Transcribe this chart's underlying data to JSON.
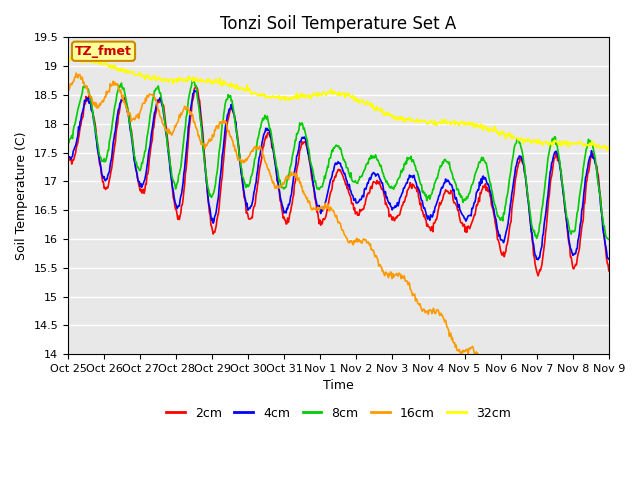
{
  "title": "Tonzi Soil Temperature Set A",
  "xlabel": "Time",
  "ylabel": "Soil Temperature (C)",
  "ylim": [
    14.0,
    19.5
  ],
  "yticks": [
    14.0,
    14.5,
    15.0,
    15.5,
    16.0,
    16.5,
    17.0,
    17.5,
    18.0,
    18.5,
    19.0,
    19.5
  ],
  "xtick_labels": [
    "Oct 25",
    "Oct 26",
    "Oct 27",
    "Oct 28",
    "Oct 29",
    "Oct 30",
    "Oct 31",
    "Nov 1",
    "Nov 2",
    "Nov 3",
    "Nov 4",
    "Nov 5",
    "Nov 6",
    "Nov 7",
    "Nov 8",
    "Nov 9"
  ],
  "legend_labels": [
    "2cm",
    "4cm",
    "8cm",
    "16cm",
    "32cm"
  ],
  "legend_colors": [
    "#ff0000",
    "#0000ff",
    "#00cc00",
    "#ff9900",
    "#ffff00"
  ],
  "line_width": 1.2,
  "plot_bg_color": "#e8e8e8",
  "grid_color": "#ffffff",
  "annotation_text": "TZ_fmet",
  "annotation_bg": "#ffff99",
  "annotation_color": "#cc0000",
  "annotation_border": "#cc8800",
  "n_days": 15
}
